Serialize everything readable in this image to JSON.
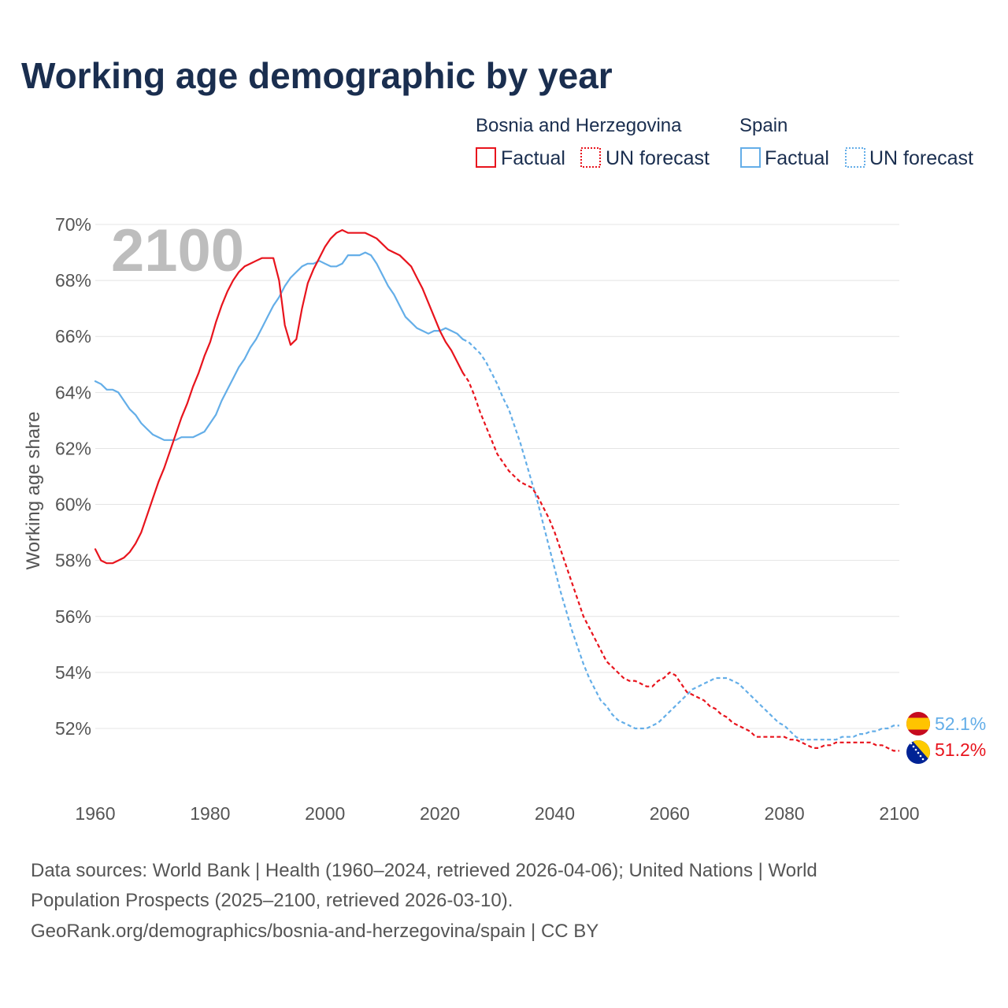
{
  "title": "Working age demographic by year",
  "legend": {
    "groups": [
      {
        "name": "Bosnia and Herzegovina",
        "factual_label": "Factual",
        "forecast_label": "UN forecast",
        "color": "#e8141d"
      },
      {
        "name": "Spain",
        "factual_label": "Factual",
        "forecast_label": "UN forecast",
        "color": "#64aee8"
      }
    ]
  },
  "watermark_year": "2100",
  "footer": {
    "line1": "Data sources: World Bank | Health (1960–2024, retrieved 2026-04-06); United Nations | World",
    "line2": "Population Prospects (2025–2100, retrieved 2026-03-10).",
    "line3": "GeoRank.org/demographics/bosnia-and-herzegovina/spain | CC BY"
  },
  "end_labels": {
    "spain": "52.1%",
    "bosnia": "51.2%"
  },
  "chart_data": {
    "type": "line",
    "title": "Working age demographic by year",
    "xlabel": "",
    "ylabel": "Working age share",
    "xlim": [
      1960,
      2100
    ],
    "ylim": [
      50,
      70
    ],
    "x_ticks": [
      1960,
      1980,
      2000,
      2020,
      2040,
      2060,
      2080,
      2100
    ],
    "x_tick_labels": [
      "1960",
      "1980",
      "2000",
      "2020",
      "2040",
      "2060",
      "2080",
      "2100"
    ],
    "y_ticks": [
      52,
      54,
      56,
      58,
      60,
      62,
      64,
      66,
      68,
      70
    ],
    "y_tick_labels": [
      "52%",
      "54%",
      "56%",
      "58%",
      "60%",
      "62%",
      "64%",
      "66%",
      "68%",
      "70%"
    ],
    "series": [
      {
        "name": "Bosnia and Herzegovina",
        "color": "#e8141d",
        "factual_range": "1960–2024",
        "factual": [
          [
            1960,
            58.4
          ],
          [
            1961,
            58.0
          ],
          [
            1962,
            57.9
          ],
          [
            1963,
            57.9
          ],
          [
            1964,
            58.0
          ],
          [
            1965,
            58.1
          ],
          [
            1966,
            58.3
          ],
          [
            1967,
            58.6
          ],
          [
            1968,
            59.0
          ],
          [
            1969,
            59.6
          ],
          [
            1970,
            60.2
          ],
          [
            1971,
            60.8
          ],
          [
            1972,
            61.3
          ],
          [
            1973,
            61.9
          ],
          [
            1974,
            62.5
          ],
          [
            1975,
            63.1
          ],
          [
            1976,
            63.6
          ],
          [
            1977,
            64.2
          ],
          [
            1978,
            64.7
          ],
          [
            1979,
            65.3
          ],
          [
            1980,
            65.8
          ],
          [
            1981,
            66.5
          ],
          [
            1982,
            67.1
          ],
          [
            1983,
            67.6
          ],
          [
            1984,
            68.0
          ],
          [
            1985,
            68.3
          ],
          [
            1986,
            68.5
          ],
          [
            1987,
            68.6
          ],
          [
            1988,
            68.7
          ],
          [
            1989,
            68.8
          ],
          [
            1990,
            68.8
          ],
          [
            1991,
            68.8
          ],
          [
            1992,
            68.0
          ],
          [
            1993,
            66.4
          ],
          [
            1994,
            65.7
          ],
          [
            1995,
            65.9
          ],
          [
            1996,
            67.0
          ],
          [
            1997,
            67.9
          ],
          [
            1998,
            68.4
          ],
          [
            1999,
            68.8
          ],
          [
            2000,
            69.2
          ],
          [
            2001,
            69.5
          ],
          [
            2002,
            69.7
          ],
          [
            2003,
            69.8
          ],
          [
            2004,
            69.7
          ],
          [
            2005,
            69.7
          ],
          [
            2006,
            69.7
          ],
          [
            2007,
            69.7
          ],
          [
            2008,
            69.6
          ],
          [
            2009,
            69.5
          ],
          [
            2010,
            69.3
          ],
          [
            2011,
            69.1
          ],
          [
            2012,
            69.0
          ],
          [
            2013,
            68.9
          ],
          [
            2014,
            68.7
          ],
          [
            2015,
            68.5
          ],
          [
            2016,
            68.1
          ],
          [
            2017,
            67.7
          ],
          [
            2018,
            67.2
          ],
          [
            2019,
            66.7
          ],
          [
            2020,
            66.2
          ],
          [
            2021,
            65.8
          ],
          [
            2022,
            65.5
          ],
          [
            2023,
            65.1
          ],
          [
            2024,
            64.7
          ]
        ],
        "forecast": [
          [
            2024,
            64.7
          ],
          [
            2025,
            64.4
          ],
          [
            2026,
            63.9
          ],
          [
            2027,
            63.3
          ],
          [
            2028,
            62.8
          ],
          [
            2029,
            62.3
          ],
          [
            2030,
            61.8
          ],
          [
            2031,
            61.5
          ],
          [
            2032,
            61.2
          ],
          [
            2033,
            61.0
          ],
          [
            2034,
            60.8
          ],
          [
            2035,
            60.7
          ],
          [
            2036,
            60.6
          ],
          [
            2037,
            60.3
          ],
          [
            2038,
            59.9
          ],
          [
            2039,
            59.5
          ],
          [
            2040,
            59.0
          ],
          [
            2041,
            58.4
          ],
          [
            2042,
            57.8
          ],
          [
            2043,
            57.2
          ],
          [
            2044,
            56.6
          ],
          [
            2045,
            56.0
          ],
          [
            2046,
            55.6
          ],
          [
            2047,
            55.2
          ],
          [
            2048,
            54.8
          ],
          [
            2049,
            54.4
          ],
          [
            2050,
            54.2
          ],
          [
            2051,
            54.0
          ],
          [
            2052,
            53.8
          ],
          [
            2053,
            53.7
          ],
          [
            2054,
            53.7
          ],
          [
            2055,
            53.6
          ],
          [
            2056,
            53.5
          ],
          [
            2057,
            53.5
          ],
          [
            2058,
            53.7
          ],
          [
            2059,
            53.8
          ],
          [
            2060,
            54.0
          ],
          [
            2061,
            53.9
          ],
          [
            2062,
            53.6
          ],
          [
            2063,
            53.3
          ],
          [
            2064,
            53.2
          ],
          [
            2065,
            53.1
          ],
          [
            2066,
            53.0
          ],
          [
            2067,
            52.8
          ],
          [
            2068,
            52.7
          ],
          [
            2069,
            52.5
          ],
          [
            2070,
            52.4
          ],
          [
            2071,
            52.2
          ],
          [
            2072,
            52.1
          ],
          [
            2073,
            52.0
          ],
          [
            2074,
            51.9
          ],
          [
            2075,
            51.7
          ],
          [
            2076,
            51.7
          ],
          [
            2077,
            51.7
          ],
          [
            2078,
            51.7
          ],
          [
            2079,
            51.7
          ],
          [
            2080,
            51.7
          ],
          [
            2081,
            51.6
          ],
          [
            2082,
            51.6
          ],
          [
            2083,
            51.5
          ],
          [
            2084,
            51.4
          ],
          [
            2085,
            51.3
          ],
          [
            2086,
            51.3
          ],
          [
            2087,
            51.4
          ],
          [
            2088,
            51.4
          ],
          [
            2089,
            51.5
          ],
          [
            2090,
            51.5
          ],
          [
            2091,
            51.5
          ],
          [
            2092,
            51.5
          ],
          [
            2093,
            51.5
          ],
          [
            2094,
            51.5
          ],
          [
            2095,
            51.5
          ],
          [
            2096,
            51.4
          ],
          [
            2097,
            51.4
          ],
          [
            2098,
            51.3
          ],
          [
            2099,
            51.2
          ],
          [
            2100,
            51.2
          ]
        ]
      },
      {
        "name": "Spain",
        "color": "#64aee8",
        "factual_range": "1960–2024",
        "factual": [
          [
            1960,
            64.4
          ],
          [
            1961,
            64.3
          ],
          [
            1962,
            64.1
          ],
          [
            1963,
            64.1
          ],
          [
            1964,
            64.0
          ],
          [
            1965,
            63.7
          ],
          [
            1966,
            63.4
          ],
          [
            1967,
            63.2
          ],
          [
            1968,
            62.9
          ],
          [
            1969,
            62.7
          ],
          [
            1970,
            62.5
          ],
          [
            1971,
            62.4
          ],
          [
            1972,
            62.3
          ],
          [
            1973,
            62.3
          ],
          [
            1974,
            62.3
          ],
          [
            1975,
            62.4
          ],
          [
            1976,
            62.4
          ],
          [
            1977,
            62.4
          ],
          [
            1978,
            62.5
          ],
          [
            1979,
            62.6
          ],
          [
            1980,
            62.9
          ],
          [
            1981,
            63.2
          ],
          [
            1982,
            63.7
          ],
          [
            1983,
            64.1
          ],
          [
            1984,
            64.5
          ],
          [
            1985,
            64.9
          ],
          [
            1986,
            65.2
          ],
          [
            1987,
            65.6
          ],
          [
            1988,
            65.9
          ],
          [
            1989,
            66.3
          ],
          [
            1990,
            66.7
          ],
          [
            1991,
            67.1
          ],
          [
            1992,
            67.4
          ],
          [
            1993,
            67.8
          ],
          [
            1994,
            68.1
          ],
          [
            1995,
            68.3
          ],
          [
            1996,
            68.5
          ],
          [
            1997,
            68.6
          ],
          [
            1998,
            68.6
          ],
          [
            1999,
            68.7
          ],
          [
            2000,
            68.6
          ],
          [
            2001,
            68.5
          ],
          [
            2002,
            68.5
          ],
          [
            2003,
            68.6
          ],
          [
            2004,
            68.9
          ],
          [
            2005,
            68.9
          ],
          [
            2006,
            68.9
          ],
          [
            2007,
            69.0
          ],
          [
            2008,
            68.9
          ],
          [
            2009,
            68.6
          ],
          [
            2010,
            68.2
          ],
          [
            2011,
            67.8
          ],
          [
            2012,
            67.5
          ],
          [
            2013,
            67.1
          ],
          [
            2014,
            66.7
          ],
          [
            2015,
            66.5
          ],
          [
            2016,
            66.3
          ],
          [
            2017,
            66.2
          ],
          [
            2018,
            66.1
          ],
          [
            2019,
            66.2
          ],
          [
            2020,
            66.2
          ],
          [
            2021,
            66.3
          ],
          [
            2022,
            66.2
          ],
          [
            2023,
            66.1
          ],
          [
            2024,
            65.9
          ]
        ],
        "forecast": [
          [
            2024,
            65.9
          ],
          [
            2025,
            65.8
          ],
          [
            2026,
            65.6
          ],
          [
            2027,
            65.4
          ],
          [
            2028,
            65.1
          ],
          [
            2029,
            64.7
          ],
          [
            2030,
            64.3
          ],
          [
            2031,
            63.8
          ],
          [
            2032,
            63.4
          ],
          [
            2033,
            62.8
          ],
          [
            2034,
            62.2
          ],
          [
            2035,
            61.5
          ],
          [
            2036,
            60.8
          ],
          [
            2037,
            60.1
          ],
          [
            2038,
            59.3
          ],
          [
            2039,
            58.5
          ],
          [
            2040,
            57.7
          ],
          [
            2041,
            56.9
          ],
          [
            2042,
            56.2
          ],
          [
            2043,
            55.5
          ],
          [
            2044,
            54.9
          ],
          [
            2045,
            54.3
          ],
          [
            2046,
            53.8
          ],
          [
            2047,
            53.4
          ],
          [
            2048,
            53.0
          ],
          [
            2049,
            52.8
          ],
          [
            2050,
            52.5
          ],
          [
            2051,
            52.3
          ],
          [
            2052,
            52.2
          ],
          [
            2053,
            52.1
          ],
          [
            2054,
            52.0
          ],
          [
            2055,
            52.0
          ],
          [
            2056,
            52.0
          ],
          [
            2057,
            52.1
          ],
          [
            2058,
            52.2
          ],
          [
            2059,
            52.4
          ],
          [
            2060,
            52.6
          ],
          [
            2061,
            52.8
          ],
          [
            2062,
            53.0
          ],
          [
            2063,
            53.2
          ],
          [
            2064,
            53.4
          ],
          [
            2065,
            53.5
          ],
          [
            2066,
            53.6
          ],
          [
            2067,
            53.7
          ],
          [
            2068,
            53.8
          ],
          [
            2069,
            53.8
          ],
          [
            2070,
            53.8
          ],
          [
            2071,
            53.7
          ],
          [
            2072,
            53.6
          ],
          [
            2073,
            53.4
          ],
          [
            2074,
            53.2
          ],
          [
            2075,
            53.0
          ],
          [
            2076,
            52.8
          ],
          [
            2077,
            52.6
          ],
          [
            2078,
            52.4
          ],
          [
            2079,
            52.2
          ],
          [
            2080,
            52.1
          ],
          [
            2081,
            51.9
          ],
          [
            2082,
            51.7
          ],
          [
            2083,
            51.6
          ],
          [
            2084,
            51.6
          ],
          [
            2085,
            51.6
          ],
          [
            2086,
            51.6
          ],
          [
            2087,
            51.6
          ],
          [
            2088,
            51.6
          ],
          [
            2089,
            51.6
          ],
          [
            2090,
            51.7
          ],
          [
            2091,
            51.7
          ],
          [
            2092,
            51.7
          ],
          [
            2093,
            51.8
          ],
          [
            2094,
            51.8
          ],
          [
            2095,
            51.9
          ],
          [
            2096,
            51.9
          ],
          [
            2097,
            52.0
          ],
          [
            2098,
            52.0
          ],
          [
            2099,
            52.1
          ],
          [
            2100,
            52.1
          ]
        ]
      }
    ]
  }
}
